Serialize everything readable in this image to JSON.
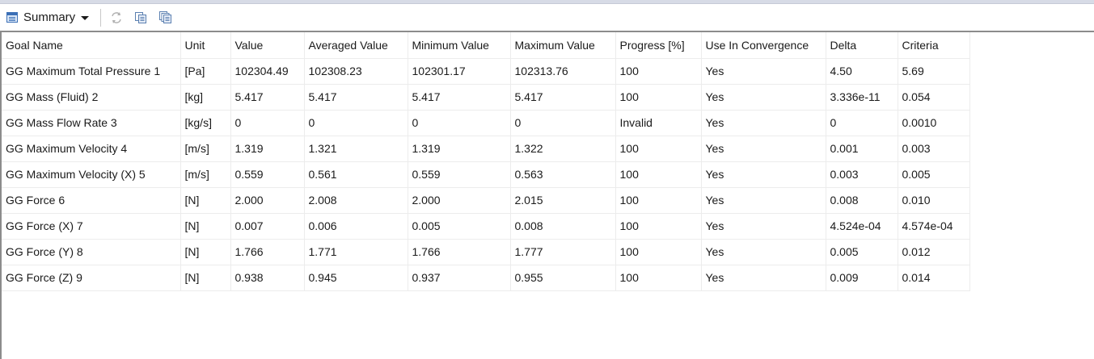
{
  "toolbar": {
    "view_label": "Summary",
    "view_icon": "summary-table-icon",
    "buttons": [
      {
        "icon": "refresh-icon"
      },
      {
        "icon": "copy-icon"
      },
      {
        "icon": "copy-all-icon"
      }
    ]
  },
  "table": {
    "columns": [
      "Goal Name",
      "Unit",
      "Value",
      "Averaged Value",
      "Minimum Value",
      "Maximum Value",
      "Progress [%]",
      "Use In Convergence",
      "Delta",
      "Criteria"
    ],
    "rows": [
      [
        "GG Maximum Total Pressure 1",
        "[Pa]",
        "102304.49",
        "102308.23",
        "102301.17",
        "102313.76",
        "100",
        "Yes",
        "4.50",
        "5.69"
      ],
      [
        "GG Mass (Fluid) 2",
        "[kg]",
        "5.417",
        "5.417",
        "5.417",
        "5.417",
        "100",
        "Yes",
        "3.336e-11",
        "0.054"
      ],
      [
        "GG Mass Flow Rate 3",
        "[kg/s]",
        "0",
        "0",
        "0",
        "0",
        "Invalid",
        "Yes",
        "0",
        "0.0010"
      ],
      [
        "GG Maximum Velocity 4",
        "[m/s]",
        "1.319",
        "1.321",
        "1.319",
        "1.322",
        "100",
        "Yes",
        "0.001",
        "0.003"
      ],
      [
        "GG Maximum Velocity (X) 5",
        "[m/s]",
        "0.559",
        "0.561",
        "0.559",
        "0.563",
        "100",
        "Yes",
        "0.003",
        "0.005"
      ],
      [
        "GG Force 6",
        "[N]",
        "2.000",
        "2.008",
        "2.000",
        "2.015",
        "100",
        "Yes",
        "0.008",
        "0.010"
      ],
      [
        "GG Force (X) 7",
        "[N]",
        "0.007",
        "0.006",
        "0.005",
        "0.008",
        "100",
        "Yes",
        "4.524e-04",
        "4.574e-04"
      ],
      [
        "GG Force (Y) 8",
        "[N]",
        "1.766",
        "1.771",
        "1.766",
        "1.777",
        "100",
        "Yes",
        "0.005",
        "0.012"
      ],
      [
        "GG Force (Z) 9",
        "[N]",
        "0.938",
        "0.945",
        "0.937",
        "0.955",
        "100",
        "Yes",
        "0.009",
        "0.014"
      ]
    ]
  }
}
